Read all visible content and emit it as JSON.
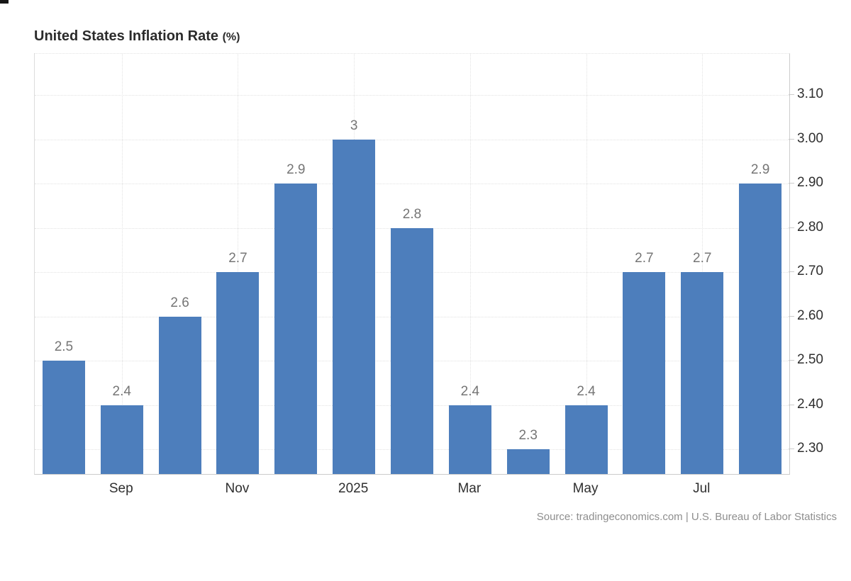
{
  "chart": {
    "title": "United States Inflation Rate",
    "title_unit": "(%)",
    "source": "Source: tradingeconomics.com | U.S. Bureau of Labor Statistics"
  },
  "chart_data": {
    "type": "bar",
    "title": "United States Inflation Rate (%)",
    "values": [
      2.5,
      2.4,
      2.6,
      2.7,
      2.9,
      3,
      2.8,
      2.4,
      2.3,
      2.4,
      2.7,
      2.7,
      2.9
    ],
    "bar_labels": [
      "2.5",
      "2.4",
      "2.6",
      "2.7",
      "2.9",
      "3",
      "2.8",
      "2.4",
      "2.3",
      "2.4",
      "2.7",
      "2.7",
      "2.9"
    ],
    "x_tick_labels": [
      {
        "bar_index": 1,
        "label": "Sep"
      },
      {
        "bar_index": 3,
        "label": "Nov"
      },
      {
        "bar_index": 5,
        "label": "2025"
      },
      {
        "bar_index": 7,
        "label": "Mar"
      },
      {
        "bar_index": 9,
        "label": "May"
      },
      {
        "bar_index": 11,
        "label": "Jul"
      }
    ],
    "y_ticks": [
      3.1,
      3.0,
      2.9,
      2.8,
      2.7,
      2.6,
      2.5,
      2.4,
      2.3
    ],
    "y_tick_labels": [
      "3.10",
      "3.00",
      "2.90",
      "2.80",
      "2.70",
      "2.60",
      "2.50",
      "2.40",
      "2.30"
    ],
    "ylim": [
      2.244,
      3.1935
    ],
    "grid": true,
    "legend": "none",
    "colors": {
      "bar": "#4d7ebc",
      "value_label": "#757575",
      "axis_label": "#2f2f2f",
      "grid_line": "#e2e2e2",
      "source_text": "#8e8e8e"
    },
    "source": "Source: tradingeconomics.com | U.S. Bureau of Labor Statistics"
  }
}
